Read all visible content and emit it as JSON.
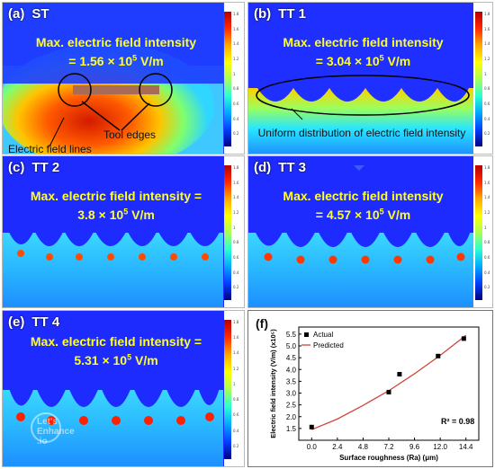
{
  "panels": {
    "a": {
      "letter": "(a)",
      "name": "ST",
      "title": "Max. electric field intensity",
      "value_prefix": "= 1.56 × 10",
      "exp": "5",
      "unit": " V/m",
      "callout_edges": "Tool edges",
      "callout_lines": "Electric field lines"
    },
    "b": {
      "letter": "(b)",
      "name": "TT 1",
      "title": "Max. electric field intensity",
      "value_prefix": "= 3.04 × 10",
      "exp": "5",
      "unit": " V/m",
      "callout_uniform": "Uniform distribution of electric field intensity"
    },
    "c": {
      "letter": "(c)",
      "name": "TT 2",
      "title": "Max. electric field intensity =",
      "value_prefix": "3.8 × 10",
      "exp": "5",
      "unit": " V/m"
    },
    "d": {
      "letter": "(d)",
      "name": "TT 3",
      "title": "Max. electric field intensity",
      "value_prefix": "= 4.57 × 10",
      "exp": "5",
      "unit": " V/m"
    },
    "e": {
      "letter": "(e)",
      "name": "TT 4",
      "title": "Max. electric field intensity =",
      "value_prefix": "5.31 × 10",
      "exp": "5",
      "unit": " V/m"
    },
    "f": {
      "letter": "(f)"
    }
  },
  "watermark": {
    "line1": "Let's",
    "line2": "Enhance",
    "line3": ".io"
  },
  "colorbar_ticks": [
    "1.8",
    "1.6",
    "1.4",
    "1.2",
    "1",
    "0.8",
    "0.6",
    "0.4",
    "0.2"
  ],
  "colors": {
    "yellow": "#ffff2a",
    "fit_line": "#d0453a"
  },
  "chart_data": {
    "type": "scatter",
    "title": "",
    "xlabel": "Surface roughness (Ra) (μm)",
    "ylabel": "Electric field intensity (V/m) (x10⁵)",
    "xlim": [
      -1.2,
      15.6
    ],
    "ylim": [
      1.0,
      5.8
    ],
    "xticks": [
      "0.0",
      "2.4",
      "4.8",
      "7.2",
      "9.6",
      "12.0",
      "14.4"
    ],
    "yticks": [
      "1.5",
      "2.0",
      "2.5",
      "3.0",
      "3.5",
      "4.0",
      "4.5",
      "5.0",
      "5.5"
    ],
    "legend_position": "top-left",
    "annotation": "R² = 0.98",
    "series": [
      {
        "name": "Actual",
        "kind": "points",
        "x": [
          0.0,
          7.2,
          8.2,
          11.8,
          14.2
        ],
        "y": [
          1.56,
          3.04,
          3.8,
          4.57,
          5.31
        ]
      },
      {
        "name": "Predicted",
        "kind": "line",
        "x": [
          0.0,
          2.4,
          4.8,
          7.2,
          9.6,
          12.0,
          14.4
        ],
        "y": [
          1.45,
          1.9,
          2.48,
          3.1,
          3.82,
          4.6,
          5.45
        ]
      }
    ]
  }
}
